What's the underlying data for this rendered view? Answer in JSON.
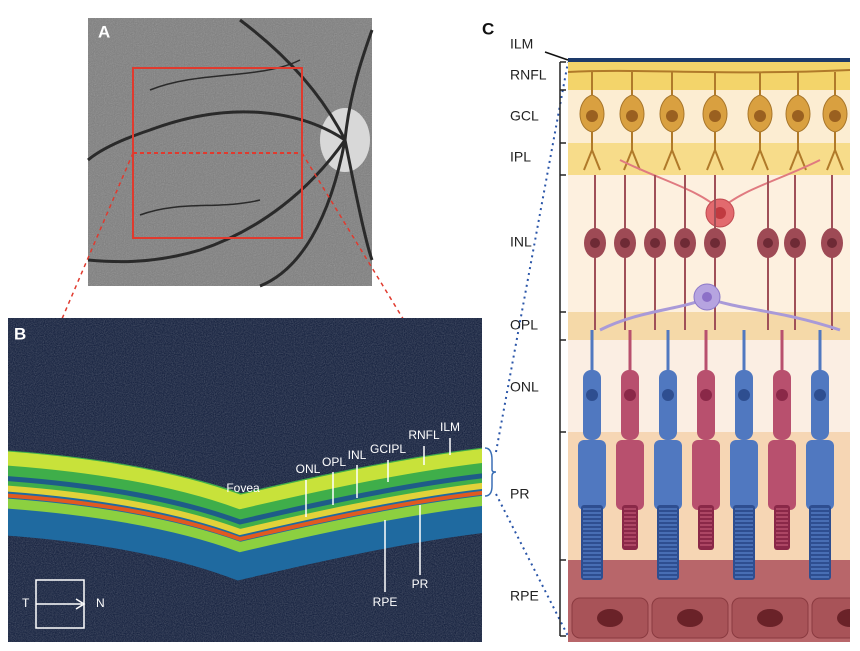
{
  "panels": {
    "a": {
      "label": "A"
    },
    "b": {
      "label": "B",
      "fovea": "Fovea",
      "layers": [
        "ONL",
        "OPL",
        "INL",
        "GCIPL",
        "RNFL",
        "ILM",
        "RPE",
        "PR"
      ],
      "orientation": [
        "T",
        "N"
      ]
    },
    "c": {
      "label": "C",
      "layers": [
        "ILM",
        "RNFL",
        "GCL",
        "IPL",
        "INL",
        "OPL",
        "ONL",
        "PR",
        "RPE"
      ]
    }
  }
}
